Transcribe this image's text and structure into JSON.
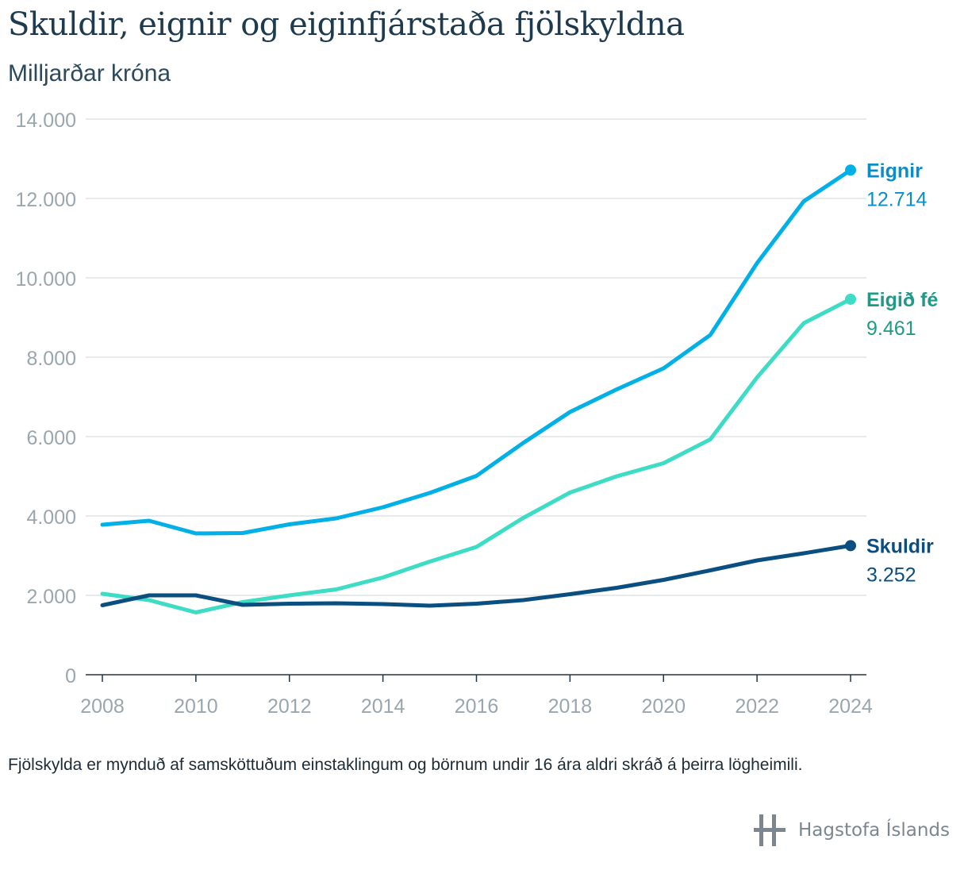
{
  "title": "Skuldir, eignir og eiginfjárstaða fjölskyldna",
  "subtitle": "Milljarðar króna",
  "footnote": "Fjölskylda er mynduð af samsköttuðum einstaklingum og börnum undir 16 ára aldri skráð á þeirra lögheimili.",
  "brand": {
    "name": "Hagstofa Íslands",
    "logo_icon": "hagstofa-logo-icon"
  },
  "chart_data": {
    "type": "line",
    "x": [
      2008,
      2009,
      2010,
      2011,
      2012,
      2013,
      2014,
      2015,
      2016,
      2017,
      2018,
      2019,
      2020,
      2021,
      2022,
      2023,
      2024
    ],
    "xticks": [
      2008,
      2010,
      2012,
      2014,
      2016,
      2018,
      2020,
      2022,
      2024
    ],
    "xtick_labels": [
      "2008",
      "2010",
      "2012",
      "2014",
      "2016",
      "2018",
      "2020",
      "2022",
      "2024"
    ],
    "yticks": [
      0,
      2000,
      4000,
      6000,
      8000,
      10000,
      12000,
      14000
    ],
    "ytick_labels": [
      "0",
      "2.000",
      "4.000",
      "6.000",
      "8.000",
      "10.000",
      "12.000",
      "14.000"
    ],
    "ylim": [
      0,
      14000
    ],
    "xlim": [
      2008,
      2024
    ],
    "grid": true,
    "series": [
      {
        "name": "Eignir",
        "end_label": "12.714",
        "color": "#00b0e6",
        "label_color": "#0a8ec9",
        "values": [
          3780,
          3880,
          3560,
          3570,
          3790,
          3940,
          4220,
          4580,
          5010,
          5840,
          6620,
          7190,
          7720,
          8560,
          10370,
          11930,
          12714
        ]
      },
      {
        "name": "Eigið fé",
        "end_label": "9.461",
        "color": "#3ddcc4",
        "label_color": "#1e9a86",
        "values": [
          2040,
          1880,
          1570,
          1830,
          2000,
          2150,
          2450,
          2850,
          3220,
          3950,
          4590,
          5000,
          5330,
          5930,
          7490,
          8860,
          9461
        ]
      },
      {
        "name": "Skuldir",
        "end_label": "3.252",
        "color": "#0b4f80",
        "label_color": "#0b4f80",
        "values": [
          1750,
          2000,
          2000,
          1760,
          1790,
          1800,
          1780,
          1740,
          1790,
          1880,
          2030,
          2190,
          2390,
          2630,
          2880,
          3060,
          3252
        ]
      }
    ]
  }
}
